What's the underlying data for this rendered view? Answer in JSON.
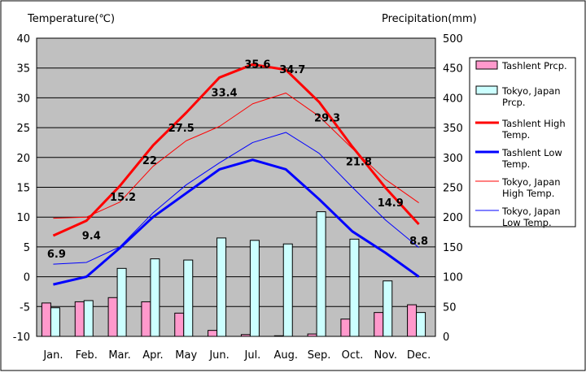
{
  "chart_data": {
    "type": "bar+line",
    "categories": [
      "Jan.",
      "Feb.",
      "Mar.",
      "Apr.",
      "May",
      "Jun.",
      "Jul.",
      "Aug.",
      "Sep.",
      "Oct.",
      "Nov.",
      "Dec."
    ],
    "y_left": {
      "label": "Temperature(℃)",
      "min": -10,
      "max": 40,
      "step": 5
    },
    "y_right": {
      "label": "Precipitation(mm)",
      "min": 0,
      "max": 500,
      "step": 50
    },
    "plot_background": "#c0c0c0",
    "grid": true,
    "legend_position": "right",
    "bars": [
      {
        "name": "Tashlent Prcp.",
        "color": "#ff99cc",
        "values": [
          56,
          58,
          65,
          58,
          39,
          10,
          3,
          1,
          4,
          29,
          40,
          53
        ]
      },
      {
        "name": "Tokyo, Japan Prcp.",
        "color": "#ccffff",
        "values": [
          48,
          60,
          114,
          130,
          128,
          165,
          161,
          155,
          209,
          163,
          93,
          40
        ]
      }
    ],
    "lines": [
      {
        "name": "Tashlent High Temp.",
        "color": "#ff0000",
        "width": 3,
        "values": [
          6.9,
          9.4,
          15.2,
          22,
          27.5,
          33.4,
          35.6,
          34.7,
          29.3,
          21.8,
          14.9,
          8.8
        ]
      },
      {
        "name": "Tashlent Low Temp.",
        "color": "#0000ff",
        "width": 3,
        "values": [
          -1.3,
          0,
          4.8,
          10,
          14,
          18,
          19.6,
          18,
          13,
          7.6,
          4,
          0
        ]
      },
      {
        "name": "Tokyo, Japan High Temp.",
        "color": "#ff0000",
        "width": 1,
        "values": [
          9.8,
          10,
          12.5,
          18.5,
          22.8,
          25.2,
          29,
          30.8,
          26.9,
          21.5,
          16.3,
          12.4
        ]
      },
      {
        "name": "Tokyo, Japan Low Temp.",
        "color": "#0000ff",
        "width": 1,
        "values": [
          2.1,
          2.4,
          5,
          10.7,
          15.4,
          19.1,
          22.5,
          24.2,
          20.7,
          15,
          9.5,
          4.9
        ]
      }
    ],
    "data_labels": [
      "6.9",
      "9.4",
      "15.2",
      "22",
      "27.5",
      "33.4",
      "35.6",
      "34.7",
      "29.3",
      "21.8",
      "14.9",
      "8.8"
    ],
    "legend_entries": [
      {
        "lines": [
          "Tashlent Prcp."
        ],
        "kind": "box",
        "color": "#ff99cc"
      },
      {
        "lines": [
          "Tokyo, Japan",
          "Prcp."
        ],
        "kind": "box",
        "color": "#ccffff"
      },
      {
        "lines": [
          "Tashlent High",
          "Temp."
        ],
        "kind": "thick",
        "color": "#ff0000"
      },
      {
        "lines": [
          "Tashlent Low",
          "Temp."
        ],
        "kind": "thick",
        "color": "#0000ff"
      },
      {
        "lines": [
          "Tokyo, Japan",
          "High Temp."
        ],
        "kind": "thin",
        "color": "#ff0000"
      },
      {
        "lines": [
          "Tokyo, Japan",
          "Low Temp."
        ],
        "kind": "thin",
        "color": "#0000ff"
      }
    ]
  }
}
